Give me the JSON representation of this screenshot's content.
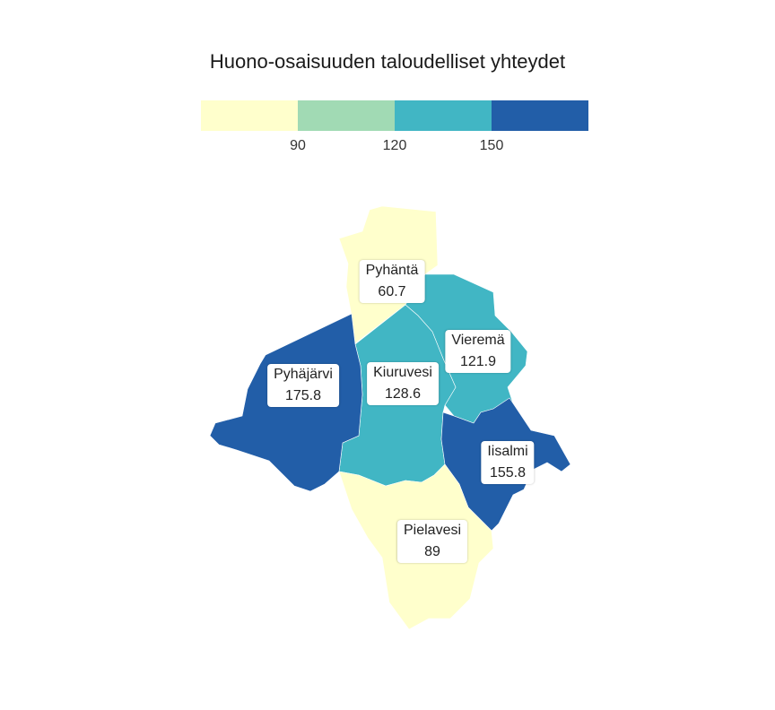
{
  "title": "Huono-osaisuuden taloudelliset yhteydet",
  "legend": {
    "colors": [
      "#ffffcc",
      "#a1dab4",
      "#41b6c4",
      "#225ea8"
    ],
    "ticks": [
      "90",
      "120",
      "150"
    ]
  },
  "regions": [
    {
      "name": "Pyhäntä",
      "value": "60.7",
      "color": "#ffffcc"
    },
    {
      "name": "Vieremä",
      "value": "121.9",
      "color": "#41b6c4"
    },
    {
      "name": "Pyhäjärvi",
      "value": "175.8",
      "color": "#225ea8"
    },
    {
      "name": "Kiuruvesi",
      "value": "128.6",
      "color": "#41b6c4"
    },
    {
      "name": "Iisalmi",
      "value": "155.8",
      "color": "#225ea8"
    },
    {
      "name": "Pielavesi",
      "value": "89",
      "color": "#ffffcc"
    }
  ]
}
